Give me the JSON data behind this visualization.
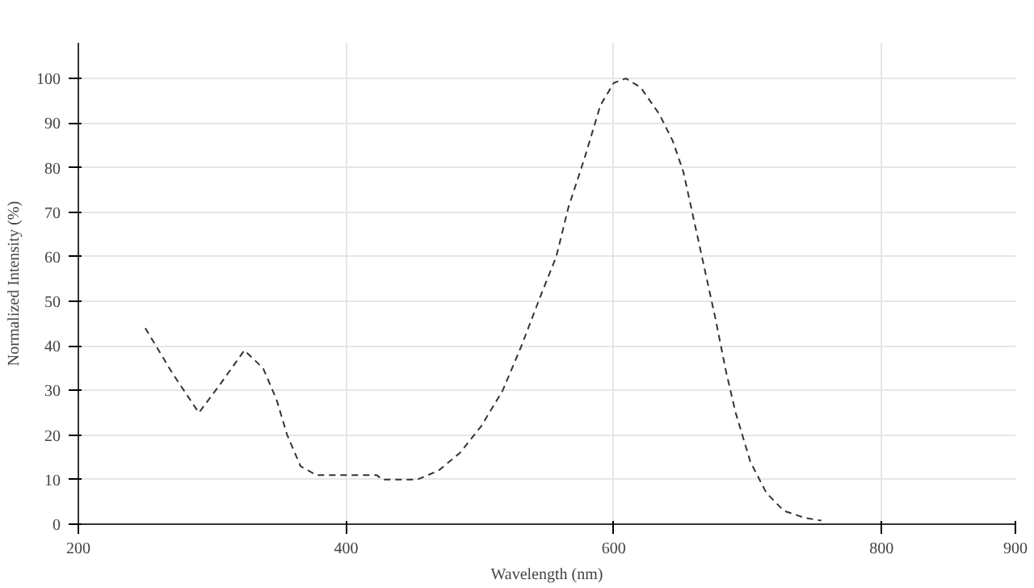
{
  "chart_data": {
    "type": "line",
    "xlabel": "Wavelength (nm)",
    "ylabel": "Normalized Intensity (%)",
    "xlim": [
      200,
      900
    ],
    "xticks": [
      200,
      400,
      600,
      800,
      900
    ],
    "ylim": [
      0,
      108
    ],
    "yticks": [
      0,
      10,
      20,
      30,
      40,
      50,
      60,
      70,
      80,
      90,
      100
    ],
    "grid": true,
    "line_style": "dashed",
    "marker": "none",
    "series": [
      {
        "color": "#333333",
        "x": [
          250,
          270,
          290,
          305,
          324,
          338,
          348,
          356,
          366,
          378,
          400,
          423,
          427,
          453,
          469,
          485,
          501,
          517,
          531,
          545,
          557,
          566,
          578,
          590,
          600,
          609,
          620,
          634,
          644,
          652,
          660,
          668,
          676,
          684,
          691,
          702,
          714,
          727,
          743,
          755
        ],
        "values": [
          44,
          34,
          25,
          31,
          39,
          35,
          28,
          20,
          13,
          11,
          11,
          11,
          10,
          10,
          12,
          16,
          22,
          30,
          40,
          51,
          60,
          71,
          82,
          94,
          99,
          100,
          98,
          92,
          86,
          79,
          68,
          57,
          46,
          34,
          25,
          14,
          7,
          3,
          1.4,
          0.8
        ]
      }
    ]
  }
}
